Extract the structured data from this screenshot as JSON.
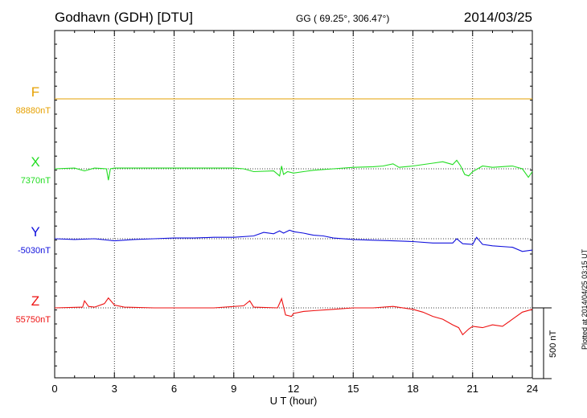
{
  "header": {
    "station": "Godhavn (GDH)  [DTU]",
    "coords": "GG ( 69.25°, 306.47°)",
    "date": "2014/03/25"
  },
  "plotted_note": "Plotted at 2014/04/25 03:15 UT",
  "chart_data": {
    "type": "line",
    "xlabel": "U T (hour)",
    "xlim": [
      0,
      24
    ],
    "xticks": [
      "0",
      "3",
      "6",
      "9",
      "12",
      "15",
      "18",
      "21",
      "24"
    ],
    "scale_bar_label": "500 nT",
    "colors": {
      "F": "#e6a000",
      "X": "#22dd22",
      "Y": "#1010dd",
      "Z": "#ee1111"
    },
    "series": [
      {
        "name": "F",
        "baseline_label": "88880nT",
        "x": [
          0,
          24
        ],
        "y_nT": [
          0,
          0
        ]
      },
      {
        "name": "X",
        "baseline_label": "7370nT",
        "x": [
          0,
          1,
          1.5,
          2,
          2.6,
          2.7,
          2.8,
          3,
          4,
          6,
          8,
          9,
          9.5,
          10,
          11,
          11.3,
          11.4,
          11.5,
          11.7,
          12,
          12.5,
          13,
          14,
          15,
          16,
          16.5,
          17,
          17.3,
          18,
          19,
          19.5,
          20,
          20.2,
          20.4,
          20.6,
          20.8,
          21,
          21.5,
          22,
          23,
          23.5,
          23.8,
          24
        ],
        "y_nT": [
          0,
          5,
          -15,
          5,
          0,
          -80,
          0,
          5,
          5,
          5,
          5,
          5,
          0,
          -20,
          -15,
          -50,
          20,
          -40,
          -20,
          -30,
          -20,
          -10,
          0,
          10,
          15,
          20,
          35,
          10,
          20,
          40,
          50,
          30,
          60,
          20,
          -40,
          -50,
          -20,
          20,
          10,
          20,
          0,
          -60,
          -20
        ]
      },
      {
        "name": "Y",
        "baseline_label": "-5030nT",
        "x": [
          0,
          1,
          2,
          3,
          4,
          5,
          6,
          7,
          8,
          9,
          10,
          10.5,
          11,
          11.3,
          11.5,
          11.8,
          12,
          12.5,
          13,
          13.5,
          14,
          15,
          16,
          17,
          18,
          19,
          20,
          20.2,
          20.5,
          21,
          21.2,
          21.5,
          22,
          23,
          23.5,
          24
        ],
        "y_nT": [
          0,
          -5,
          0,
          -15,
          -5,
          0,
          5,
          5,
          10,
          10,
          20,
          45,
          35,
          55,
          40,
          60,
          50,
          40,
          25,
          20,
          5,
          -5,
          -10,
          -15,
          -20,
          -30,
          -30,
          0,
          -35,
          -40,
          10,
          -40,
          -50,
          -60,
          -90,
          -80
        ]
      },
      {
        "name": "Z",
        "baseline_label": "55750nT",
        "x": [
          0,
          1.4,
          1.5,
          1.7,
          2,
          2.5,
          2.7,
          3,
          3.5,
          5,
          8,
          9.5,
          9.8,
          10,
          11.2,
          11.4,
          11.6,
          11.9,
          12,
          12.5,
          13,
          14,
          15,
          16,
          17,
          18,
          18.5,
          19,
          19.5,
          20,
          20.3,
          20.5,
          20.8,
          21,
          21.5,
          22,
          22.5,
          23,
          23.5,
          24
        ],
        "y_nT": [
          0,
          5,
          50,
          10,
          5,
          30,
          70,
          20,
          5,
          0,
          0,
          15,
          50,
          5,
          0,
          65,
          -50,
          -60,
          -40,
          -25,
          -20,
          -10,
          0,
          0,
          10,
          -10,
          -30,
          -60,
          -80,
          -120,
          -140,
          -190,
          -150,
          -130,
          -140,
          -120,
          -130,
          -80,
          -30,
          -10
        ]
      }
    ]
  }
}
